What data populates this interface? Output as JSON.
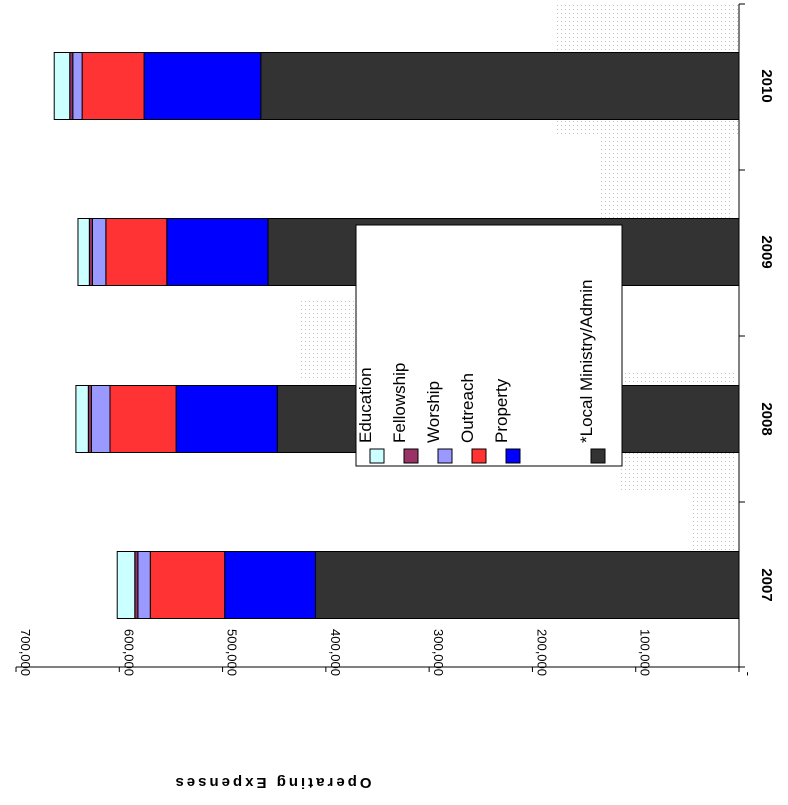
{
  "chart_data": {
    "type": "bar",
    "stacked": true,
    "orientation": "horizontal (rotated page)",
    "categories": [
      "2007",
      "2008",
      "2009",
      "2010"
    ],
    "series": [
      {
        "name": "*Local Ministry/Admin",
        "color": "#333333",
        "values": [
          410000,
          447000,
          456000,
          463000
        ]
      },
      {
        "name": "Property",
        "color": "#0000FF",
        "values": [
          88000,
          98000,
          98000,
          113000
        ]
      },
      {
        "name": "Outreach",
        "color": "#FF3333",
        "values": [
          72000,
          64000,
          59000,
          60000
        ]
      },
      {
        "name": "Worship",
        "color": "#9999FF",
        "values": [
          12000,
          18000,
          13000,
          9000
        ]
      },
      {
        "name": "Fellowship",
        "color": "#993366",
        "values": [
          3000,
          3000,
          3000,
          3000
        ]
      },
      {
        "name": "Education",
        "color": "#CCFFFF",
        "values": [
          17000,
          12000,
          11000,
          15000
        ]
      }
    ],
    "ylabel": "Operating Expenses",
    "y_ticks": [
      "-",
      "100,000",
      "200,000",
      "300,000",
      "400,000",
      "500,000",
      "600,000",
      "700,000"
    ],
    "ylim": [
      0,
      700000
    ],
    "legend_position": "inside, center",
    "grid": false
  }
}
